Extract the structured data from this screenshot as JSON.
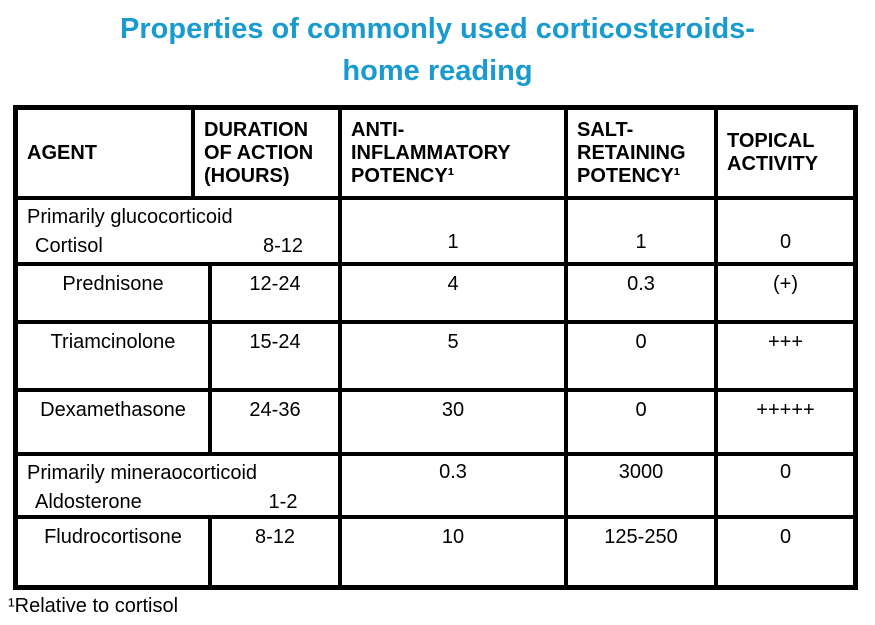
{
  "title": {
    "line1": "Properties of commonly used corticosteroids-",
    "line2": "home reading"
  },
  "colors": {
    "title_accent": "#1A9BD0",
    "table_border": "#000000",
    "background": "#FFFFFF",
    "text": "#000000"
  },
  "table": {
    "headers": {
      "agent": "AGENT",
      "duration": "DURATION\nOF ACTION\n(HOURS)",
      "anti_inflammatory": "ANTI-\nINFLAMMATORY\nPOTENCY¹",
      "salt_retaining": "SALT-\nRETAINING\nPOTENCY¹",
      "topical": "TOPICAL\nACTIVITY"
    },
    "rows": [
      {
        "group_label": "Primarily glucocorticoid",
        "agent": "Cortisol",
        "duration": "8-12",
        "anti_inflammatory": "1",
        "salt_retaining": "1",
        "topical": "0"
      },
      {
        "agent": "Prednisone",
        "duration": "12-24",
        "anti_inflammatory": "4",
        "salt_retaining": "0.3",
        "topical": "(+)"
      },
      {
        "agent": "Triamcinolone",
        "duration": "15-24",
        "anti_inflammatory": "5",
        "salt_retaining": "0",
        "topical": "+++"
      },
      {
        "agent": "Dexamethasone",
        "duration": "24-36",
        "anti_inflammatory": "30",
        "salt_retaining": "0",
        "topical": "+++++"
      },
      {
        "group_label": "Primarily mineraocorticoid",
        "agent": "Aldosterone",
        "duration": "1-2",
        "anti_inflammatory": "0.3",
        "salt_retaining": "3000",
        "topical": "0"
      },
      {
        "agent": "Fludrocortisone",
        "duration": "8-12",
        "anti_inflammatory": "10",
        "salt_retaining": "125-250",
        "topical": "0"
      }
    ]
  },
  "footnote": "¹Relative to cortisol"
}
